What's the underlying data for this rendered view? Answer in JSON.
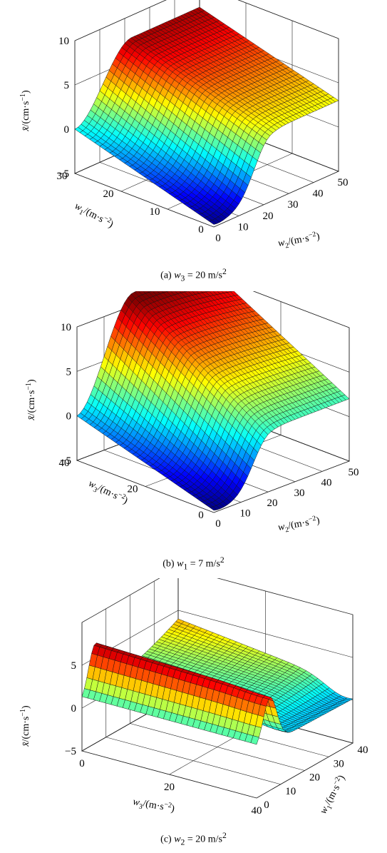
{
  "figure": {
    "panels": [
      {
        "id": "a",
        "caption": {
          "prefix": "(a) ",
          "var": "w",
          "sub": "3",
          "rest": " = 20 m/s",
          "sup": "2"
        }
      },
      {
        "id": "b",
        "caption": {
          "prefix": "(b) ",
          "var": "w",
          "sub": "1",
          "rest": " = 7 m/s",
          "sup": "2"
        }
      },
      {
        "id": "c",
        "caption": {
          "prefix": "(c) ",
          "var": "w",
          "sub": "2",
          "rest": " = 20 m/s",
          "sup": "2"
        }
      }
    ]
  },
  "chart_data": [
    {
      "type": "surface",
      "colormap": "jet",
      "x_axis": {
        "label": "w2/(m·s−2)",
        "ticks": [
          0,
          10,
          20,
          30,
          40,
          50
        ],
        "range": [
          0,
          50
        ]
      },
      "y_axis": {
        "label": "w1/(m·s−2)",
        "ticks": [
          0,
          10,
          20,
          30
        ],
        "range": [
          0,
          30
        ]
      },
      "z_axis": {
        "label": "x̄/(cm·s−1)",
        "ticks": [
          -5,
          0,
          5,
          10
        ],
        "range": [
          -5,
          10
        ]
      },
      "fixed": "w3 = 20 m/s2",
      "corner_values": {
        "w2_0_w1_30": 0,
        "w2_0_w1_0": -4.5,
        "w2_50_w1_30": 7,
        "w2_50_w1_0": 3
      }
    },
    {
      "type": "surface",
      "colormap": "jet",
      "x_axis": {
        "label": "w2/(m·s−2)",
        "ticks": [
          0,
          10,
          20,
          30,
          40,
          50
        ],
        "range": [
          0,
          50
        ]
      },
      "y_axis": {
        "label": "w3/(m·s−2)",
        "ticks": [
          0,
          20,
          40
        ],
        "range": [
          0,
          40
        ]
      },
      "z_axis": {
        "label": "x̄/(cm·s−1)",
        "ticks": [
          -5,
          0,
          5,
          10
        ],
        "range": [
          -5,
          10
        ]
      },
      "fixed": "w1 = 7 m/s2",
      "corner_values": {
        "w2_0_w3_40": 0,
        "w2_0_w3_0": -4.5,
        "w2_50_w3_40": 10.5,
        "w2_50_w3_0": 2
      }
    },
    {
      "type": "surface",
      "colormap": "jet",
      "x_axis": {
        "label": "w3/(m·s−2)",
        "ticks": [
          0,
          20,
          40
        ],
        "range": [
          0,
          40
        ]
      },
      "y_axis": {
        "label": "w1/(m·s−2)",
        "ticks": [
          0,
          10,
          20,
          30,
          40
        ],
        "range": [
          0,
          40
        ]
      },
      "z_axis": {
        "label": "x̄/(cm·s−1)",
        "ticks": [
          -5,
          0,
          5
        ],
        "range": [
          -5,
          10
        ]
      },
      "fixed": "w2 = 20 m/s2",
      "corner_values": {
        "w3_0_w1_0": 0.5,
        "w3_40_w1_0": 0,
        "w3_40_w1_40": 1,
        "w3_0_w1_40": 3
      }
    }
  ]
}
